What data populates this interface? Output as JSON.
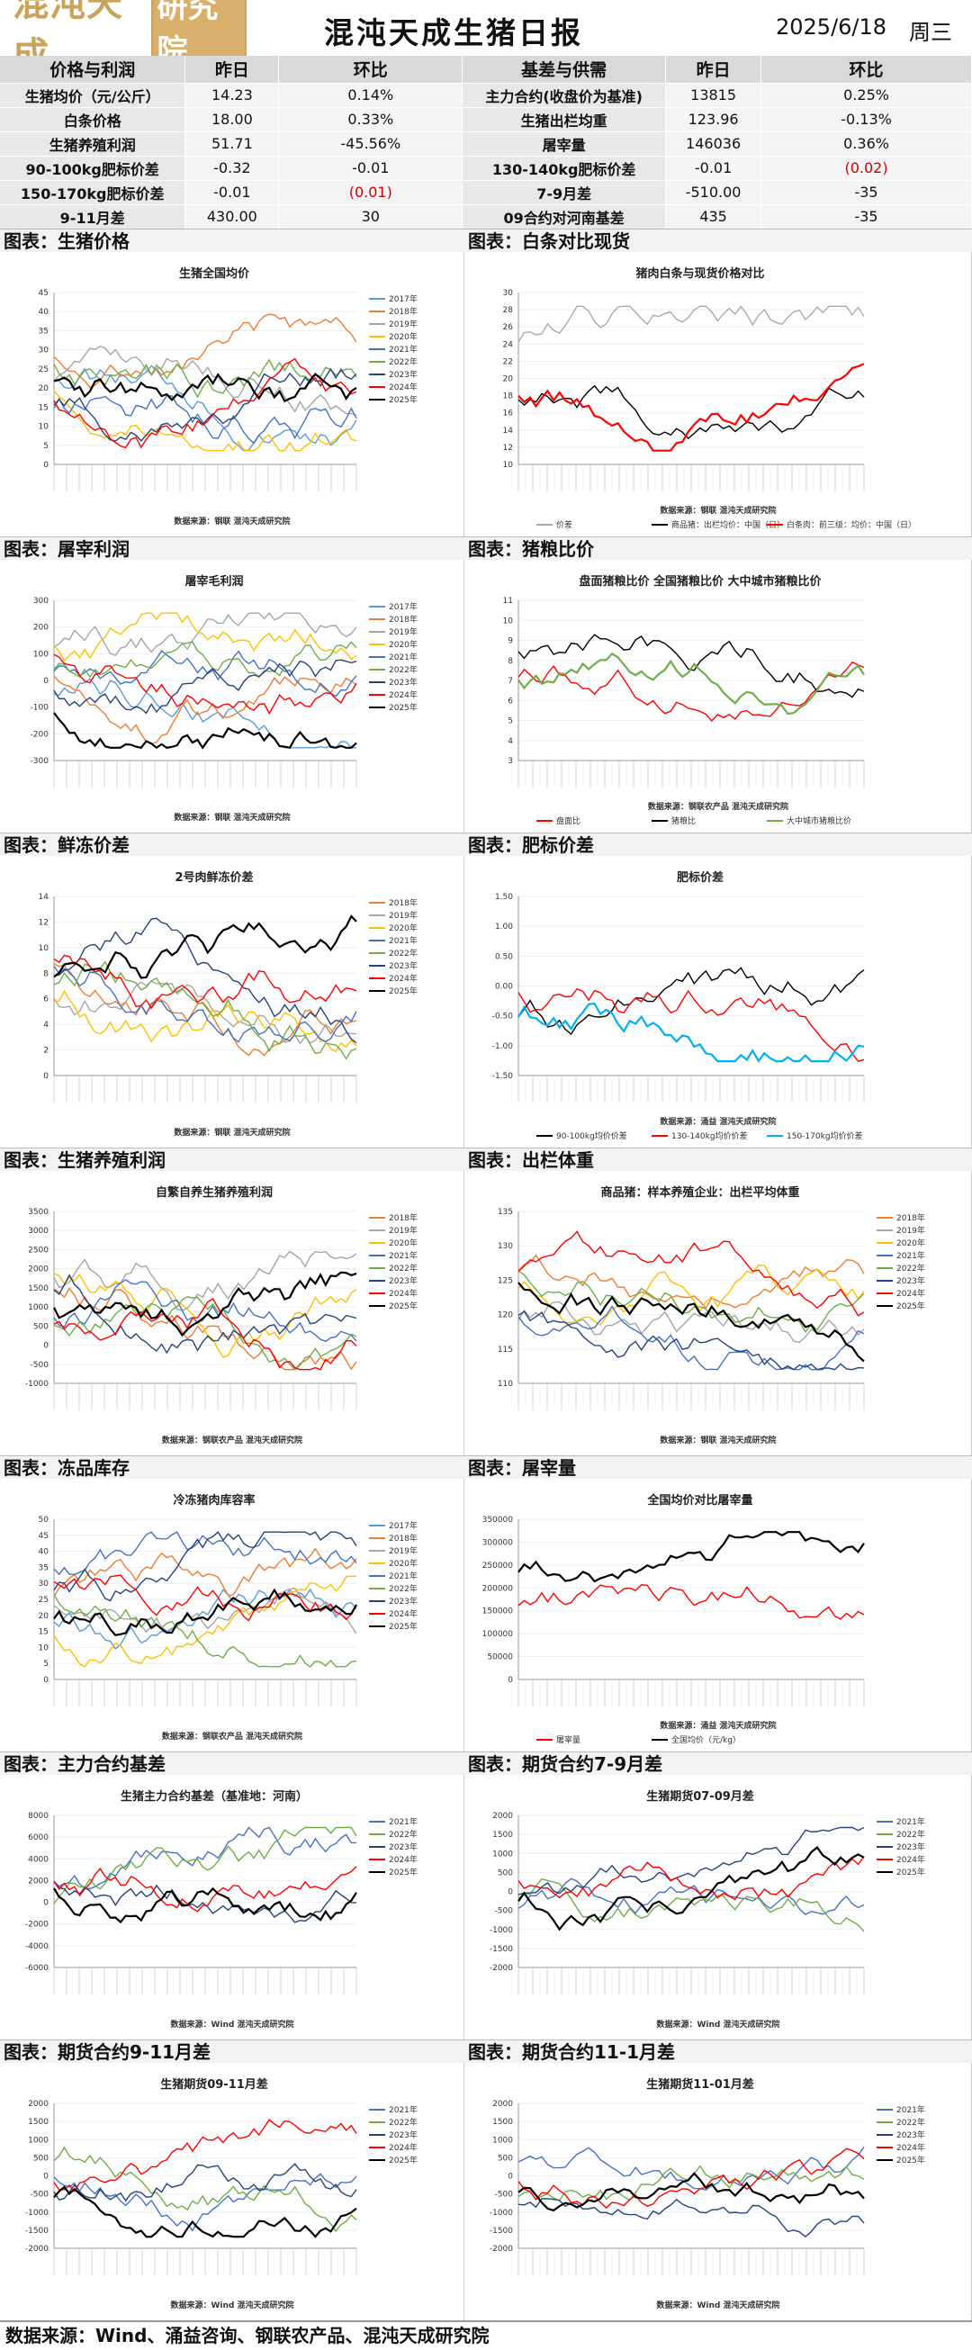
{
  "header": {
    "logo_text": "混沌天成",
    "logo_box": "研究院",
    "title": "混沌天成生猪日报",
    "date": "2025/6/18",
    "weekday": "周三"
  },
  "table": {
    "headers": [
      "价格与利润",
      "昨日",
      "环比",
      "基差与供需",
      "昨日",
      "环比"
    ],
    "rows": [
      [
        "生猪均价（元/公斤）",
        "14.23",
        "0.14%",
        "主力合约(收盘价为基准)",
        "13815",
        "0.25%"
      ],
      [
        "白条价格",
        "18.00",
        "0.33%",
        "生猪出栏均重",
        "123.96",
        "-0.13%"
      ],
      [
        "生猪养殖利润",
        "51.71",
        "-45.56%",
        "屠宰量",
        "146036",
        "0.36%"
      ],
      [
        "90-100kg肥标价差",
        "-0.32",
        "-0.01",
        "130-140kg肥标价差",
        "-0.01",
        "(0.02)"
      ],
      [
        "150-170kg肥标价差",
        "-0.01",
        "(0.01)",
        "7-9月差",
        "-510.00",
        "-35"
      ],
      [
        "9-11月差",
        "430.00",
        "30",
        "09合约对河南基差",
        "435",
        "-35"
      ]
    ]
  },
  "sections": [
    [
      "图表：生猪价格",
      "图表：白条对比现货"
    ],
    [
      "图表：屠宰利润",
      "图表：猪粮比价"
    ],
    [
      "图表：鲜冻价差",
      "图表：肥标价差"
    ],
    [
      "图表：生猪养殖利润",
      "图表：出栏体重"
    ],
    [
      "图表：冻品库存",
      "图表：屠宰量"
    ],
    [
      "图表：主力合约基差",
      "图表：期货合约7-9月差"
    ],
    [
      "图表：期货合约9-11月差",
      "图表：期货合约11-1月差"
    ]
  ],
  "charts": [
    {
      "title": "生猪全国均价",
      "source": "数据来源：钢联  混沌天成研究院",
      "legend": [
        "2017年",
        "2018年",
        "2019年",
        "2020年",
        "2021年",
        "2022年",
        "2023年",
        "2024年",
        "2025年"
      ],
      "yticks": [
        "45",
        "40",
        "35",
        "30",
        "25",
        "20",
        "15",
        "10",
        "5",
        "0"
      ]
    },
    {
      "title": "猪肉白条与现货价格对比",
      "source": "数据来源：钢联  混沌天成研究院",
      "legend": [
        "价差",
        "商品猪：出栏均价：中国（日）",
        "白条肉：前三级：均价：中国（日）"
      ],
      "yticks": [
        "30",
        "28",
        "26",
        "24",
        "22",
        "20",
        "18",
        "16",
        "14",
        "12",
        "10"
      ]
    },
    {
      "title": "屠宰毛利润",
      "source": "数据来源：钢联  混沌天成研究院",
      "legend": [
        "2017年",
        "2018年",
        "2019年",
        "2020年",
        "2021年",
        "2022年",
        "2023年",
        "2024年",
        "2025年"
      ],
      "yticks": [
        "300",
        "200",
        "100",
        "0",
        "-100",
        "-200",
        "-300"
      ]
    },
    {
      "title": "盘面猪粮比价  全国猪粮比价  大中城市猪粮比价",
      "source": "数据来源：钢联农产品  混沌天成研究院",
      "legend": [
        "盘面比",
        "猪粮比",
        "大中城市猪粮比价"
      ],
      "yticks": [
        "11",
        "10",
        "9",
        "8",
        "7",
        "6",
        "5",
        "4",
        "3"
      ]
    },
    {
      "title": "2号肉鲜冻价差",
      "source": "数据来源：钢联  混沌天成研究院",
      "legend": [
        "2018年",
        "2019年",
        "2020年",
        "2021年",
        "2022年",
        "2023年",
        "2024年",
        "2025年"
      ],
      "yticks": [
        "14",
        "12",
        "10",
        "8",
        "6",
        "4",
        "2",
        "0"
      ]
    },
    {
      "title": "肥标价差",
      "source": "数据来源：涌益  混沌天成研究院",
      "legend": [
        "90-100kg均价价差",
        "130-140kg均价价差",
        "150-170kg均价价差"
      ],
      "yticks": [
        "1.50",
        "1.00",
        "0.50",
        "0.00",
        "-0.50",
        "-1.00",
        "-1.50"
      ]
    },
    {
      "title": "自繁自养生猪养殖利润",
      "source": "数据来源：钢联农产品  混沌天成研究院",
      "legend": [
        "2018年",
        "2019年",
        "2020年",
        "2021年",
        "2022年",
        "2023年",
        "2024年",
        "2025年"
      ],
      "yticks": [
        "3500",
        "3000",
        "2500",
        "2000",
        "1500",
        "1000",
        "500",
        "0",
        "-500",
        "-1000"
      ]
    },
    {
      "title": "商品猪：样本养殖企业：出栏平均体重",
      "source": "数据来源：钢联  混沌天成研究院",
      "legend": [
        "2018年",
        "2019年",
        "2020年",
        "2021年",
        "2022年",
        "2023年",
        "2024年",
        "2025年"
      ],
      "yticks": [
        "135",
        "130",
        "125",
        "120",
        "115",
        "110"
      ]
    },
    {
      "title": "冷冻猪肉库容率",
      "source": "数据来源：钢联农产品  混沌天成研究院",
      "legend": [
        "2017年",
        "2018年",
        "2019年",
        "2020年",
        "2021年",
        "2022年",
        "2023年",
        "2024年",
        "2025年"
      ],
      "yticks": [
        "50",
        "45",
        "40",
        "35",
        "30",
        "25",
        "20",
        "15",
        "10",
        "5",
        "0"
      ]
    },
    {
      "title": "全国均价对比屠宰量",
      "source": "数据来源：涌益  混沌天成研究院",
      "legend": [
        "屠宰量",
        "全国均价（元/kg）"
      ],
      "yticks": [
        "350000",
        "300000",
        "250000",
        "200000",
        "150000",
        "100000",
        "50000",
        "0"
      ]
    },
    {
      "title": "生猪主力合约基差（基准地：河南）",
      "source": "数据来源：Wind  混沌天成研究院",
      "legend": [
        "2021年",
        "2022年",
        "2023年",
        "2024年",
        "2025年"
      ],
      "yticks": [
        "8000",
        "6000",
        "4000",
        "2000",
        "0",
        "-2000",
        "-4000",
        "-6000"
      ]
    },
    {
      "title": "生猪期货07-09月差",
      "source": "数据来源：Wind  混沌天成研究院",
      "legend": [
        "2021年",
        "2022年",
        "2023年",
        "2024年",
        "2025年"
      ],
      "yticks": [
        "2000",
        "1500",
        "1000",
        "500",
        "0",
        "-500",
        "-1000",
        "-1500",
        "-2000"
      ]
    },
    {
      "title": "生猪期货09-11月差",
      "source": "数据来源：Wind  混沌天成研究院",
      "legend": [
        "2021年",
        "2022年",
        "2023年",
        "2024年",
        "2025年"
      ],
      "yticks": [
        "2000",
        "1500",
        "1000",
        "500",
        "0",
        "-500",
        "-1000",
        "-1500",
        "-2000"
      ]
    },
    {
      "title": "生猪期货11-01月差",
      "source": "数据来源：Wind  混沌天成研究院",
      "legend": [
        "2021年",
        "2022年",
        "2023年",
        "2024年",
        "2025年"
      ],
      "yticks": [
        "2000",
        "1500",
        "1000",
        "500",
        "0",
        "-500",
        "-1000",
        "-1500",
        "-2000"
      ]
    }
  ],
  "colors": [
    "#5b9bd5",
    "#ed7d31",
    "#a5a5a5",
    "#ffc000",
    "#4472c4",
    "#70ad47",
    "#264478",
    "#ff0000",
    "#000000"
  ],
  "footer": "数据来源：Wind、涌益咨询、钢联农产品、混沌天成研究院"
}
